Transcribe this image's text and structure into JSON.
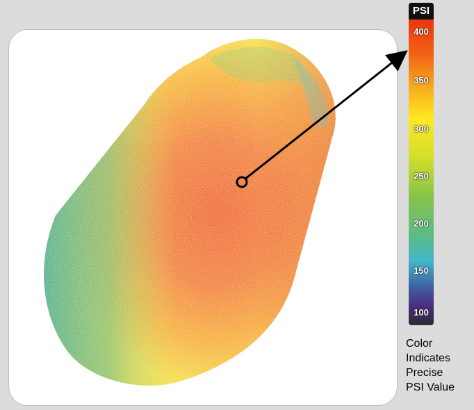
{
  "legend": {
    "title": "PSI",
    "ticks": [
      "400",
      "350",
      "300",
      "250",
      "200",
      "150",
      "100"
    ],
    "caption": "Color\nIndicates\nPrecise\nPSI Value"
  },
  "colors": {
    "background": "#dcdcdc",
    "panel": "#ffffff",
    "highest": "#d42a0d",
    "high": "#f26317",
    "mid_high": "#fde823",
    "mid": "#88c34a",
    "low": "#42b7c8",
    "lower": "#4b2d7f",
    "lowest": "#2a2a30"
  }
}
